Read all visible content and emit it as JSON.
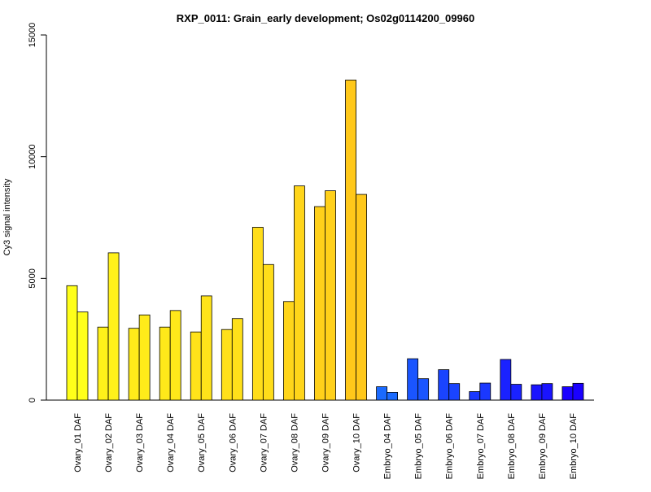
{
  "chart_data": {
    "type": "bar",
    "title": "RXP_0011: Grain_early development; Os02g0114200_09960",
    "xlabel": "",
    "ylabel": "Cy3 signal intensity",
    "ylim": [
      0,
      15000
    ],
    "yticks": [
      0,
      5000,
      10000,
      15000
    ],
    "grid": false,
    "legend": "none",
    "categories": [
      "Ovary_01 DAF",
      "Ovary_02 DAF",
      "Ovary_03 DAF",
      "Ovary_04 DAF",
      "Ovary_05 DAF",
      "Ovary_06 DAF",
      "Ovary_07 DAF",
      "Ovary_08 DAF",
      "Ovary_09 DAF",
      "Ovary_10 DAF",
      "Embryo_04 DAF",
      "Embryo_05 DAF",
      "Embryo_06 DAF",
      "Embryo_07 DAF",
      "Embryo_08 DAF",
      "Embryo_09 DAF",
      "Embryo_10 DAF"
    ],
    "series": [
      {
        "values": [
          4700,
          3000,
          2950,
          3000,
          2800,
          2900,
          7100,
          4050,
          7950,
          13150,
          550,
          1700,
          1250,
          350,
          1670,
          630,
          550
        ]
      },
      {
        "values": [
          3620,
          6050,
          3500,
          3680,
          4280,
          3350,
          5570,
          8800,
          8600,
          8450,
          320,
          880,
          680,
          700,
          650,
          680,
          690
        ]
      }
    ],
    "colors": [
      "#ffff1a",
      "#fff11a",
      "#ffeb1a",
      "#ffe81a",
      "#ffe31a",
      "#ffe01a",
      "#ffdd1a",
      "#ffd51a",
      "#ffd01a",
      "#ffc81a",
      "#1a6aff",
      "#1a55ff",
      "#1a44ff",
      "#1a38ff",
      "#1a22ff",
      "#1a14ff",
      "#1a00ff"
    ]
  }
}
